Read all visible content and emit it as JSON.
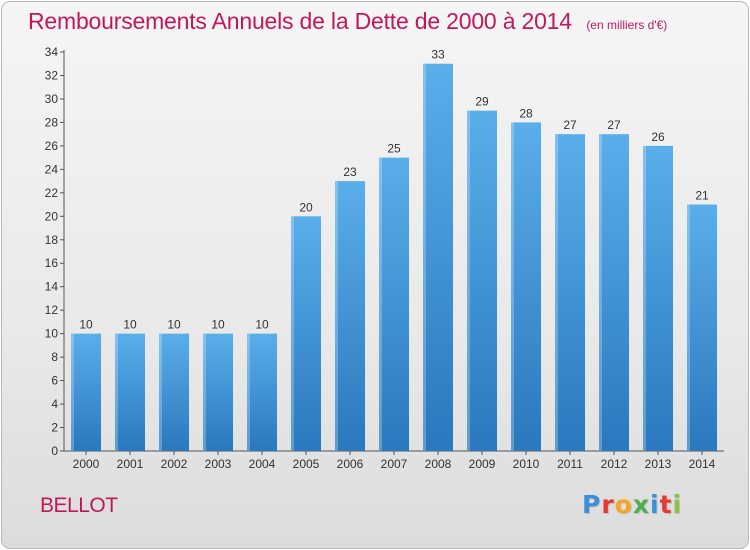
{
  "header": {
    "title": "Remboursements Annuels de la Dette de 2000 à 2014",
    "unit": "(en milliers d'€)"
  },
  "footer": {
    "commune": "BELLOT",
    "logo_text": "Proxiti",
    "logo_colors": [
      "#3b8fd6",
      "#e53935",
      "#f5a623",
      "#4caf50",
      "#3b8fd6",
      "#e53935",
      "#8bc34a"
    ]
  },
  "chart_data": {
    "type": "bar",
    "title": "Remboursements Annuels de la Dette de 2000 à 2014",
    "xlabel": "",
    "ylabel": "",
    "categories": [
      "2000",
      "2001",
      "2002",
      "2003",
      "2004",
      "2005",
      "2006",
      "2007",
      "2008",
      "2009",
      "2010",
      "2011",
      "2012",
      "2013",
      "2014"
    ],
    "values": [
      10,
      10,
      10,
      10,
      10,
      20,
      23,
      25,
      33,
      29,
      28,
      27,
      27,
      26,
      21
    ],
    "ylim": [
      0,
      34
    ],
    "yticks": [
      0,
      2,
      4,
      6,
      8,
      10,
      12,
      14,
      16,
      18,
      20,
      22,
      24,
      26,
      28,
      30,
      32,
      34
    ],
    "grid": false,
    "bar_color": "#4a9fe0",
    "bar_color_dark": "#2f7fc4"
  }
}
